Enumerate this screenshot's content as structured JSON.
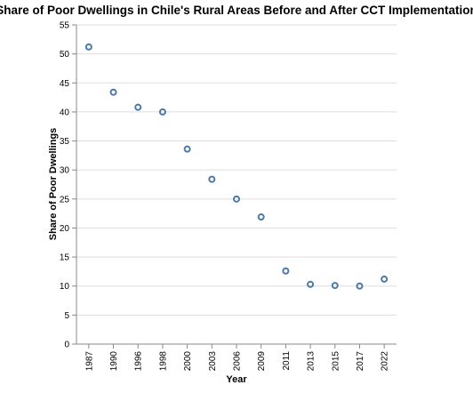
{
  "chart_data": {
    "type": "scatter",
    "title": "Share of Poor Dwellings in Chile's Rural Areas Before and After CCT Implementation",
    "xlabel": "Year",
    "ylabel": "Share of Poor Dwellings",
    "categories": [
      "1987",
      "1990",
      "1996",
      "1998",
      "2000",
      "2003",
      "2006",
      "2009",
      "2011",
      "2013",
      "2015",
      "2017",
      "2022"
    ],
    "values": [
      51.2,
      43.4,
      40.8,
      40.0,
      33.6,
      28.4,
      25.0,
      21.9,
      12.6,
      10.3,
      10.1,
      10.0,
      11.2
    ],
    "ylim": [
      0,
      55
    ],
    "yticks": [
      0,
      5,
      10,
      15,
      20,
      25,
      30,
      35,
      40,
      45,
      50,
      55
    ],
    "grid": true,
    "point_color": "#4c78a8"
  }
}
